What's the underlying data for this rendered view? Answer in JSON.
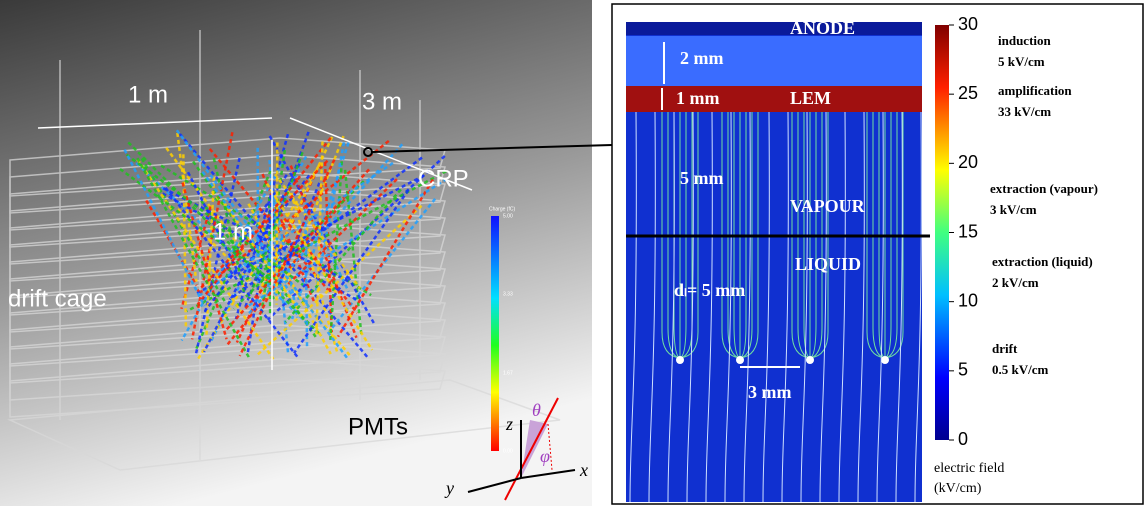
{
  "left": {
    "labels": {
      "width": "1 m",
      "length": "3 m",
      "crp": "CRP",
      "height": "1 m",
      "cage": "drift cage",
      "pmts": "PMTs"
    },
    "axes": {
      "z": "z",
      "theta": "θ",
      "phi": "φ",
      "x": "x",
      "y": "y"
    },
    "colorbar": {
      "title": "Charge (fC)",
      "labels": [
        "5.00",
        "3.33",
        "1.67",
        "0.00"
      ]
    }
  },
  "right": {
    "labels": {
      "anode": "ANODE",
      "gap2": "2 mm",
      "gap1": "1 mm",
      "lem": "LEM",
      "gap5": "5 mm",
      "vapour": "VAPOUR",
      "liquid": "LIQUID",
      "dl": "dₗ= 5 mm",
      "pitch": "3 mm"
    },
    "colorbar": {
      "lim": [
        0,
        30
      ],
      "ticks": [
        0,
        5,
        10,
        15,
        20,
        25,
        30
      ],
      "label": [
        "electric field",
        "(kV/cm)"
      ],
      "annotations": [
        {
          "name": "induction",
          "value": "5 kV/cm"
        },
        {
          "name": "amplification",
          "value": "33 kV/cm"
        },
        {
          "name": "extraction (vapour)",
          "value": "3 kV/cm"
        },
        {
          "name": "extraction (liquid)",
          "value": "2 kV/cm"
        },
        {
          "name": "drift",
          "value": "0.5 kV/cm"
        }
      ]
    }
  }
}
